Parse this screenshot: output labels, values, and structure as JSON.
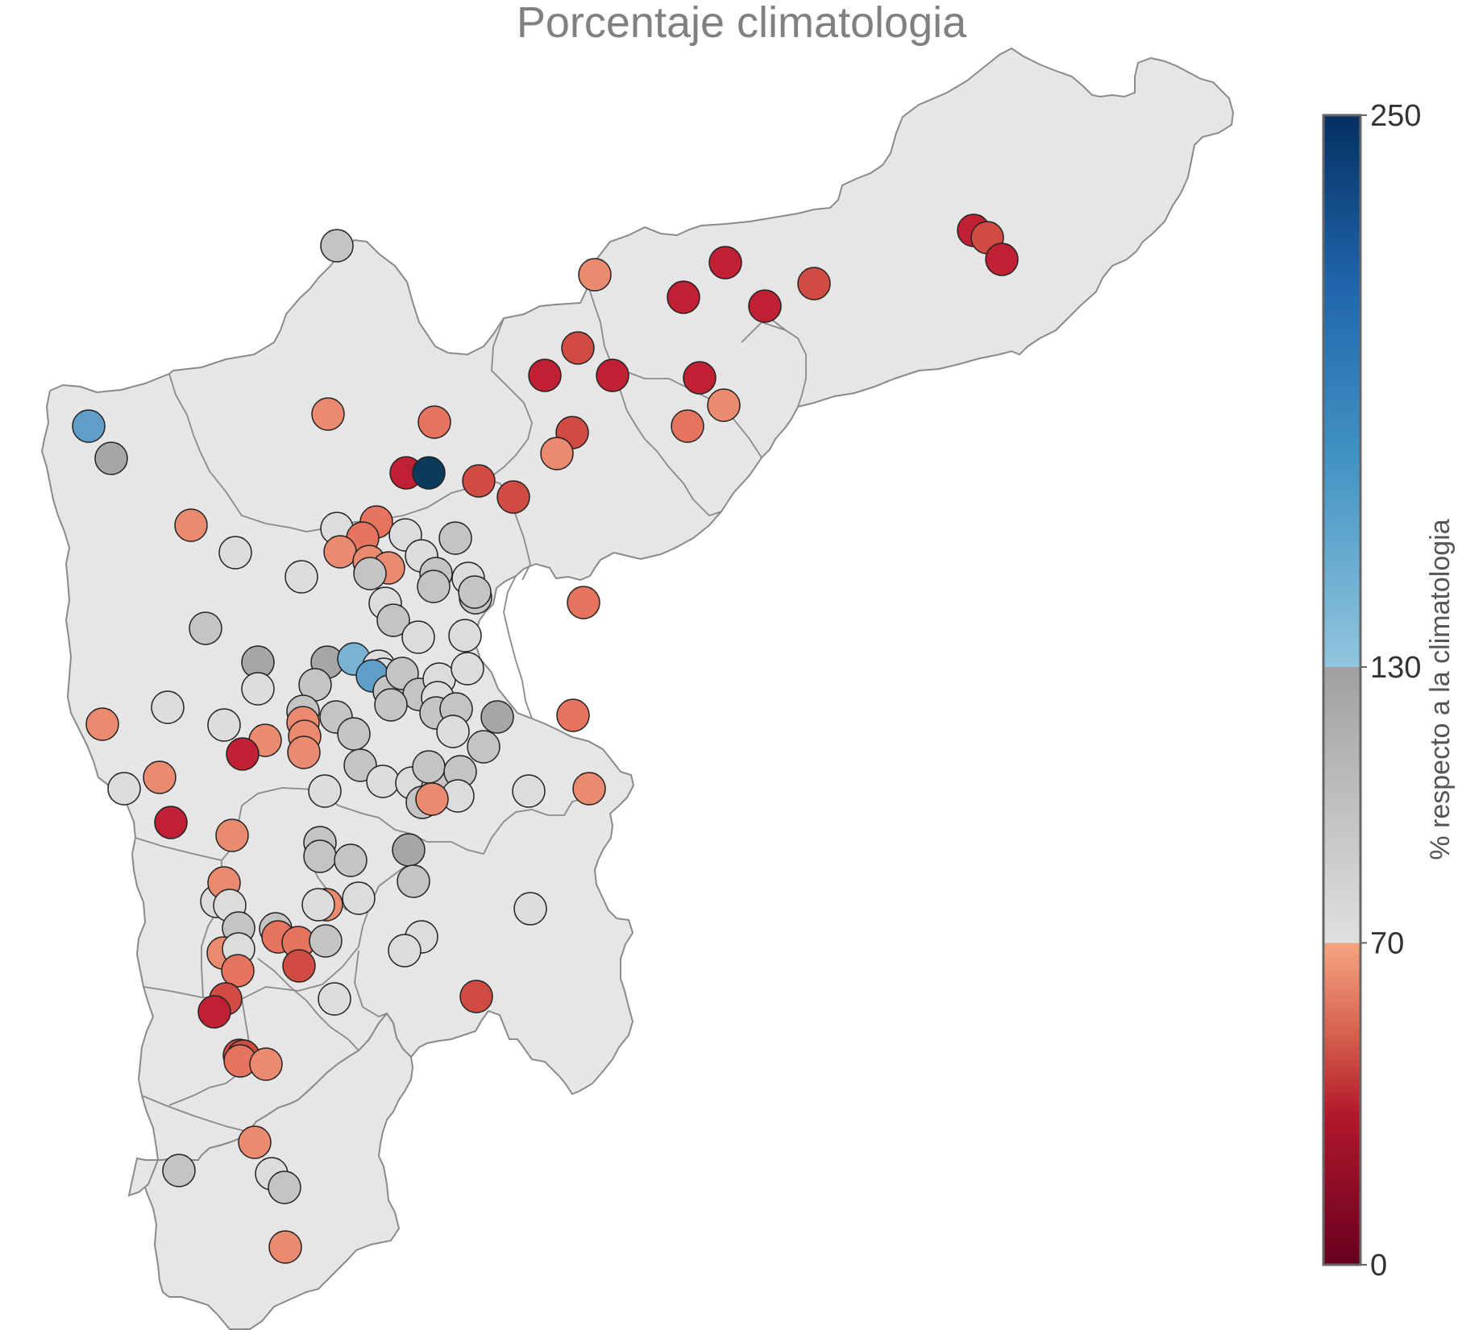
{
  "title": "Porcentaje climatologia",
  "colorbar": {
    "label": "% respecto a la climatologia",
    "min": 0,
    "max": 250,
    "ticks": [
      {
        "value": 0,
        "label": "0"
      },
      {
        "value": 70,
        "label": "70"
      },
      {
        "value": 130,
        "label": "130"
      },
      {
        "value": 250,
        "label": "250"
      }
    ],
    "segments": [
      {
        "from": 0,
        "to": 70,
        "colors": [
          "#67001f",
          "#b2182b",
          "#d6604d",
          "#f4a582"
        ]
      },
      {
        "from": 70,
        "to": 130,
        "colors": [
          "#e0e0e0",
          "#bababa",
          "#a0a0a0"
        ]
      },
      {
        "from": 130,
        "to": 250,
        "colors": [
          "#92c5de",
          "#4393c3",
          "#2166ac",
          "#053061"
        ]
      }
    ]
  },
  "stations_note_colors": {
    "dark_red": "#bf2033",
    "red": "#d04b42",
    "orange": "#e6735d",
    "light_orange": "#ea8a6e",
    "light_gray": "#dcdcdc",
    "gray": "#c4c4c4",
    "dark_gray": "#a6a6a6",
    "light_blue": "#7ab2d4",
    "blue": "#5f9ec8",
    "navy": "#0b3a5a"
  }
}
